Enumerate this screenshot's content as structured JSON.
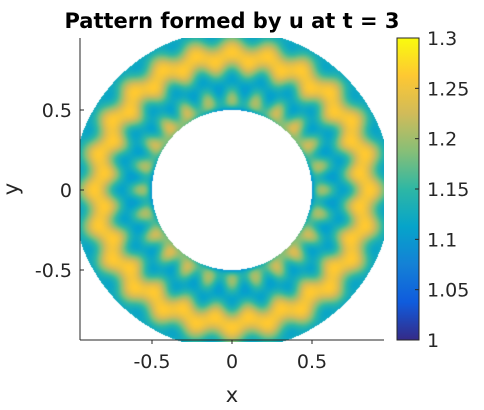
{
  "chart_data": {
    "type": "heatmap",
    "title": "Pattern formed by u at t = 3",
    "xlabel": "x",
    "ylabel": "y",
    "xlim": [
      -0.95,
      0.95
    ],
    "ylim": [
      -0.95,
      0.95
    ],
    "xticks": [
      {
        "value": -0.5,
        "label": "-0.5"
      },
      {
        "value": 0,
        "label": "0"
      },
      {
        "value": 0.5,
        "label": "0.5"
      }
    ],
    "yticks": [
      {
        "value": 0.5,
        "label": "0.5"
      },
      {
        "value": 0,
        "label": "0"
      },
      {
        "value": -0.5,
        "label": "-0.5"
      }
    ],
    "domain": {
      "shape": "annulus",
      "inner_radius": 0.5,
      "outer_radius": 1.0
    },
    "field": {
      "base": 1.19,
      "radial_amplitude": 0.065,
      "radial_frequency": 9.42,
      "angular_amplitude": 0.035,
      "angular_mode": 24,
      "inner_dip": 0.17,
      "inner_dip_width": 0.05,
      "clamp": [
        1.0,
        1.3
      ]
    },
    "colorbar": {
      "colormap": "parula",
      "clim": [
        1.0,
        1.3
      ],
      "ticks": [
        {
          "value": 1.3,
          "label": "1.3"
        },
        {
          "value": 1.25,
          "label": "1.25"
        },
        {
          "value": 1.2,
          "label": "1.2"
        },
        {
          "value": 1.15,
          "label": "1.15"
        },
        {
          "value": 1.1,
          "label": "1.1"
        },
        {
          "value": 1.05,
          "label": "1.05"
        },
        {
          "value": 1.0,
          "label": "1"
        }
      ],
      "stops": [
        "#352a87",
        "#0f5cdd",
        "#1481d6",
        "#06a4ca",
        "#2eb7a4",
        "#87bf77",
        "#d1bb59",
        "#fec832",
        "#f9fb0e"
      ]
    }
  }
}
